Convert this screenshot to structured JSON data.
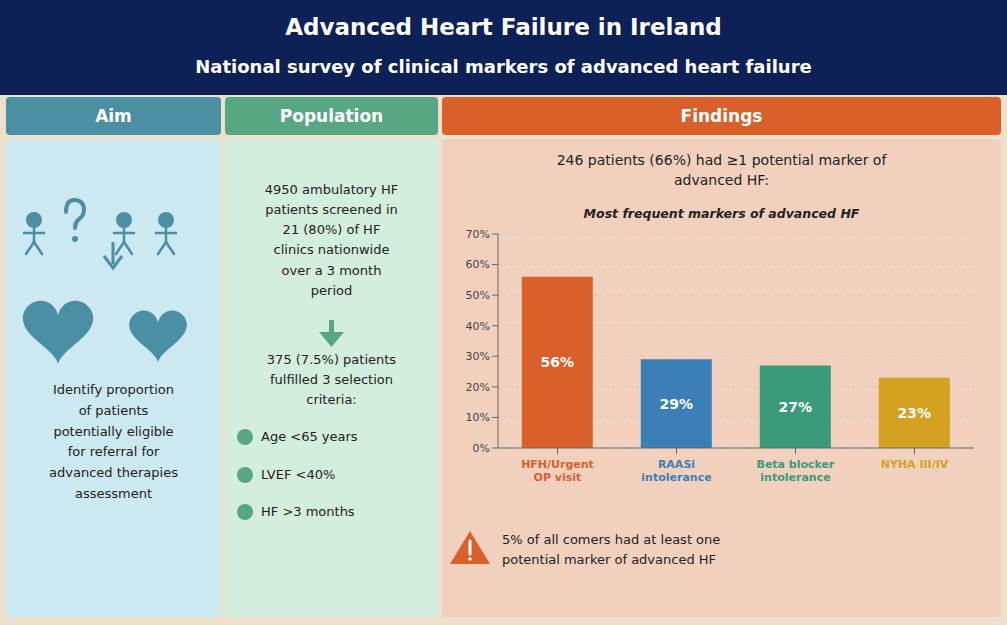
{
  "chart_data": {
    "type": "bar",
    "title": "Advanced Heart Failure in Ireland",
    "subtitle": "National survey of clinical markers of advanced heart failure",
    "annotations": [
      "Aim",
      "Population",
      "Findings",
      "Identify proportion\nof patients\npotentially eligible\nfor referral for\nadvanced therapies\nassessment",
      "4950 ambulatory HF\npatients screened in\n21 (80%) of HF\nclinics nationwide\nover a 3 month\nperiod",
      "375 (7.5%) patients\nfulfilled 3 selection\ncriteria:",
      "Age <65 years",
      "LVEF <40%",
      "HF >3 months",
      "246 patients (66%) had ≥1 potential marker of\nadvanced HF:",
      "Most frequent markers of advanced HF",
      "5% of all comers had at least one\npotential marker of advanced HF"
    ],
    "categories": [
      "HFH/Urgent\nOP visit",
      "RAASi\nintolerance",
      "Beta blocker\nintolerance",
      "NYHA III/IV"
    ],
    "values": [
      56,
      29,
      27,
      23
    ],
    "value_labels": [
      "56%",
      "29%",
      "27%",
      "23%"
    ],
    "data_labels": true,
    "colors": [
      "#d95f2b",
      "#3b7fb5",
      "#3a9a7a",
      "#d4a020"
    ],
    "ylim": [
      0,
      70
    ],
    "yticks": [
      {
        "value": 0,
        "label": "0%"
      },
      {
        "value": 10,
        "label": "10%"
      },
      {
        "value": 20,
        "label": "20%"
      },
      {
        "value": 30,
        "label": "30%"
      },
      {
        "value": 40,
        "label": "40%"
      },
      {
        "value": 50,
        "label": "50%"
      },
      {
        "value": 60,
        "label": "60%"
      },
      {
        "value": 70,
        "label": "70%"
      }
    ],
    "grid": true
  }
}
